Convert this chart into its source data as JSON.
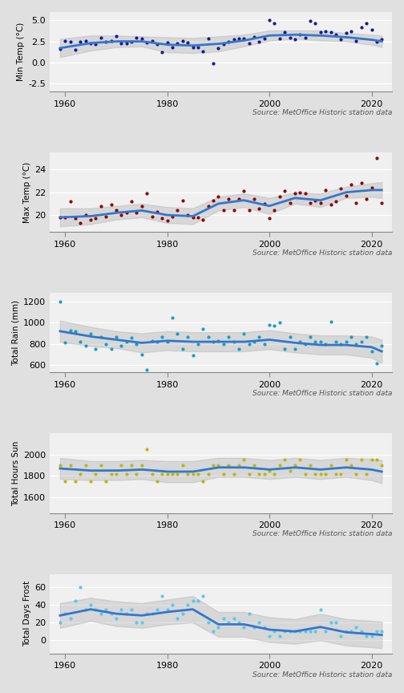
{
  "bg_color": "#e0e0e0",
  "plot_bg": "#f0f0f0",
  "source_text": "Source: MetOffice Historic station data",
  "panels": [
    {
      "ylabel": "Min Temp (°C)",
      "ylim": [
        -3.5,
        6.0
      ],
      "yticks": [
        -2.5,
        0.0,
        2.5,
        5.0
      ],
      "dot_color": "#1a1a8c",
      "years": [
        1959,
        1960,
        1961,
        1962,
        1963,
        1964,
        1965,
        1966,
        1967,
        1968,
        1969,
        1970,
        1971,
        1972,
        1973,
        1974,
        1975,
        1976,
        1977,
        1978,
        1979,
        1980,
        1981,
        1982,
        1983,
        1984,
        1985,
        1986,
        1987,
        1988,
        1989,
        1990,
        1991,
        1992,
        1993,
        1994,
        1995,
        1996,
        1997,
        1998,
        1999,
        2000,
        2001,
        2002,
        2003,
        2004,
        2005,
        2006,
        2007,
        2008,
        2009,
        2010,
        2011,
        2012,
        2013,
        2014,
        2015,
        2016,
        2017,
        2018,
        2019,
        2020,
        2021,
        2022
      ],
      "values": [
        1.6,
        2.6,
        2.5,
        1.5,
        2.5,
        2.6,
        2.3,
        2.2,
        2.9,
        2.5,
        2.6,
        3.1,
        2.3,
        2.3,
        2.5,
        2.9,
        2.8,
        2.4,
        2.6,
        2.2,
        1.2,
        2.4,
        1.8,
        2.3,
        2.6,
        2.4,
        1.8,
        1.8,
        1.3,
        2.8,
        -0.1,
        1.7,
        2.2,
        2.5,
        2.7,
        2.8,
        2.8,
        2.3,
        3.0,
        2.5,
        2.8,
        5.0,
        4.7,
        2.8,
        3.6,
        2.9,
        2.7,
        3.3,
        2.9,
        4.9,
        4.7,
        3.6,
        3.7,
        3.6,
        3.3,
        2.7,
        3.5,
        3.7,
        2.6,
        4.2,
        4.7,
        3.9,
        2.5,
        2.7
      ],
      "smooth_years": [
        1959,
        1965,
        1970,
        1975,
        1980,
        1985,
        1990,
        1995,
        2000,
        2005,
        2010,
        2015,
        2020,
        2022
      ],
      "smooth_vals": [
        1.7,
        2.3,
        2.5,
        2.5,
        2.1,
        2.0,
        2.2,
        2.6,
        3.2,
        3.3,
        3.2,
        3.0,
        2.7,
        2.5
      ],
      "ci_upper": [
        2.8,
        3.2,
        3.2,
        3.1,
        3.0,
        2.9,
        3.1,
        3.3,
        3.8,
        3.8,
        3.8,
        3.5,
        3.3,
        3.2
      ],
      "ci_lower": [
        0.6,
        1.4,
        1.8,
        1.9,
        1.2,
        1.1,
        1.3,
        1.9,
        2.6,
        2.8,
        2.6,
        2.5,
        2.1,
        1.8
      ]
    },
    {
      "ylabel": "Max Temp (°C)",
      "ylim": [
        18.5,
        25.5
      ],
      "yticks": [
        20,
        22,
        24
      ],
      "dot_color": "#8b0000",
      "years": [
        1959,
        1960,
        1961,
        1962,
        1963,
        1964,
        1965,
        1966,
        1967,
        1968,
        1969,
        1970,
        1971,
        1972,
        1973,
        1974,
        1975,
        1976,
        1977,
        1978,
        1979,
        1980,
        1981,
        1982,
        1983,
        1984,
        1985,
        1986,
        1987,
        1988,
        1989,
        1990,
        1991,
        1992,
        1993,
        1994,
        1995,
        1996,
        1997,
        1998,
        1999,
        2000,
        2001,
        2002,
        2003,
        2004,
        2005,
        2006,
        2007,
        2008,
        2009,
        2010,
        2011,
        2012,
        2013,
        2014,
        2015,
        2016,
        2017,
        2018,
        2019,
        2020,
        2021,
        2022
      ],
      "values": [
        19.8,
        19.8,
        21.2,
        19.7,
        19.3,
        20.0,
        19.6,
        19.7,
        20.8,
        19.9,
        20.9,
        20.4,
        20.0,
        20.2,
        21.2,
        20.2,
        20.8,
        21.9,
        19.9,
        20.3,
        19.7,
        19.5,
        19.9,
        20.4,
        21.3,
        20.0,
        19.8,
        19.8,
        19.6,
        20.8,
        21.3,
        21.6,
        20.4,
        21.4,
        20.4,
        21.4,
        22.1,
        20.4,
        21.4,
        20.6,
        21.0,
        19.7,
        20.4,
        21.6,
        22.1,
        21.1,
        21.9,
        22.0,
        21.9,
        21.1,
        21.3,
        21.1,
        22.2,
        20.9,
        21.2,
        22.3,
        21.7,
        22.7,
        21.1,
        22.8,
        21.4,
        22.4,
        25.0,
        21.1
      ],
      "smooth_years": [
        1959,
        1965,
        1970,
        1975,
        1980,
        1985,
        1990,
        1995,
        2000,
        2005,
        2010,
        2015,
        2020,
        2022
      ],
      "smooth_vals": [
        19.8,
        19.9,
        20.2,
        20.4,
        20.0,
        19.9,
        21.0,
        21.3,
        20.8,
        21.5,
        21.3,
        22.0,
        22.2,
        22.2
      ],
      "ci_upper": [
        20.6,
        20.6,
        20.8,
        21.0,
        20.7,
        20.6,
        21.6,
        21.9,
        21.5,
        22.0,
        21.9,
        22.5,
        22.8,
        22.9
      ],
      "ci_lower": [
        19.0,
        19.2,
        19.6,
        19.8,
        19.3,
        19.2,
        20.4,
        20.7,
        20.1,
        21.0,
        20.7,
        21.5,
        21.6,
        21.5
      ]
    },
    {
      "ylabel": "Total Rain (mm)",
      "ylim": [
        530,
        1280
      ],
      "yticks": [
        600,
        800,
        1000,
        1200
      ],
      "dot_color": "#1a9fc0",
      "years": [
        1959,
        1960,
        1961,
        1962,
        1963,
        1964,
        1965,
        1966,
        1967,
        1968,
        1969,
        1970,
        1971,
        1972,
        1973,
        1974,
        1975,
        1976,
        1977,
        1978,
        1979,
        1980,
        1981,
        1982,
        1983,
        1984,
        1985,
        1986,
        1987,
        1988,
        1989,
        1990,
        1991,
        1992,
        1993,
        1994,
        1995,
        1996,
        1997,
        1998,
        1999,
        2000,
        2001,
        2002,
        2003,
        2004,
        2005,
        2006,
        2007,
        2008,
        2009,
        2010,
        2011,
        2012,
        2013,
        2014,
        2015,
        2016,
        2017,
        2018,
        2019,
        2020,
        2021,
        2022
      ],
      "values": [
        1200,
        810,
        930,
        920,
        820,
        780,
        900,
        750,
        870,
        800,
        750,
        870,
        780,
        820,
        860,
        800,
        700,
        560,
        830,
        820,
        870,
        820,
        1050,
        900,
        750,
        870,
        690,
        800,
        940,
        870,
        820,
        830,
        800,
        870,
        820,
        750,
        900,
        800,
        820,
        870,
        800,
        980,
        970,
        1000,
        750,
        870,
        750,
        820,
        800,
        870,
        820,
        820,
        800,
        1010,
        820,
        800,
        820,
        870,
        800,
        820,
        870,
        730,
        620,
        780
      ],
      "smooth_years": [
        1959,
        1965,
        1970,
        1975,
        1980,
        1985,
        1990,
        1995,
        2000,
        2005,
        2010,
        2015,
        2020,
        2022
      ],
      "smooth_vals": [
        920,
        870,
        840,
        810,
        830,
        820,
        820,
        820,
        840,
        810,
        790,
        790,
        770,
        730
      ],
      "ci_upper": [
        1020,
        960,
        920,
        900,
        920,
        910,
        910,
        910,
        930,
        900,
        880,
        880,
        870,
        840
      ],
      "ci_lower": [
        820,
        780,
        760,
        720,
        740,
        730,
        730,
        730,
        750,
        720,
        700,
        700,
        670,
        620
      ]
    },
    {
      "ylabel": "Total Hours Sun",
      "ylim": [
        1450,
        2200
      ],
      "yticks": [
        1600,
        1800,
        2000
      ],
      "dot_color": "#b8b810",
      "years": [
        1959,
        1960,
        1961,
        1962,
        1963,
        1964,
        1965,
        1966,
        1967,
        1968,
        1969,
        1970,
        1971,
        1972,
        1973,
        1974,
        1975,
        1976,
        1977,
        1978,
        1979,
        1980,
        1981,
        1982,
        1983,
        1984,
        1985,
        1986,
        1987,
        1988,
        1989,
        1990,
        1991,
        1992,
        1993,
        1994,
        1995,
        1996,
        1997,
        1998,
        1999,
        2000,
        2001,
        2002,
        2003,
        2004,
        2005,
        2006,
        2007,
        2008,
        2009,
        2010,
        2011,
        2012,
        2013,
        2014,
        2015,
        2016,
        2017,
        2018,
        2019,
        2020,
        2021,
        2022
      ],
      "values": [
        1900,
        1750,
        1900,
        1750,
        1820,
        1900,
        1750,
        1820,
        1900,
        1750,
        1820,
        1820,
        1900,
        1820,
        1900,
        1820,
        1900,
        2050,
        1820,
        1750,
        1820,
        1820,
        1820,
        1820,
        1900,
        1820,
        1820,
        1820,
        1750,
        1820,
        1900,
        1900,
        1820,
        1900,
        1820,
        1900,
        1950,
        1820,
        1900,
        1820,
        1820,
        1850,
        1820,
        1900,
        1950,
        1850,
        1900,
        1950,
        1820,
        1900,
        1820,
        1820,
        1820,
        1900,
        1820,
        1820,
        1950,
        1900,
        1820,
        1950,
        1820,
        1950,
        1950,
        1900
      ],
      "smooth_years": [
        1959,
        1965,
        1970,
        1975,
        1980,
        1985,
        1990,
        1995,
        2000,
        2005,
        2010,
        2015,
        2020,
        2022
      ],
      "smooth_vals": [
        1870,
        1850,
        1850,
        1860,
        1840,
        1840,
        1880,
        1880,
        1860,
        1880,
        1860,
        1880,
        1860,
        1840
      ],
      "ci_upper": [
        1970,
        1940,
        1940,
        1950,
        1940,
        1940,
        1970,
        1970,
        1950,
        1970,
        1950,
        1970,
        1960,
        1950
      ],
      "ci_lower": [
        1770,
        1760,
        1760,
        1770,
        1740,
        1740,
        1790,
        1790,
        1770,
        1790,
        1770,
        1790,
        1760,
        1730
      ]
    },
    {
      "ylabel": "Total Days Frost",
      "ylim": [
        -15,
        75
      ],
      "yticks": [
        0,
        20,
        40,
        60
      ],
      "dot_color": "#5bc8e8",
      "years": [
        1959,
        1960,
        1961,
        1962,
        1963,
        1964,
        1965,
        1966,
        1967,
        1968,
        1969,
        1970,
        1971,
        1972,
        1973,
        1974,
        1975,
        1976,
        1977,
        1978,
        1979,
        1980,
        1981,
        1982,
        1983,
        1984,
        1985,
        1986,
        1987,
        1988,
        1989,
        1990,
        1991,
        1992,
        1993,
        1994,
        1995,
        1996,
        1997,
        1998,
        1999,
        2000,
        2001,
        2002,
        2003,
        2004,
        2005,
        2006,
        2007,
        2008,
        2009,
        2010,
        2011,
        2012,
        2013,
        2014,
        2015,
        2016,
        2017,
        2018,
        2019,
        2020,
        2021,
        2022
      ],
      "values": [
        20,
        30,
        25,
        45,
        60,
        35,
        40,
        35,
        30,
        35,
        30,
        25,
        35,
        30,
        35,
        20,
        20,
        30,
        30,
        35,
        50,
        35,
        40,
        25,
        30,
        40,
        45,
        45,
        50,
        20,
        10,
        15,
        25,
        20,
        25,
        20,
        15,
        30,
        15,
        20,
        15,
        5,
        10,
        5,
        10,
        10,
        10,
        10,
        10,
        10,
        10,
        35,
        10,
        20,
        20,
        5,
        10,
        10,
        15,
        10,
        5,
        5,
        10,
        10
      ],
      "smooth_years": [
        1959,
        1965,
        1970,
        1975,
        1980,
        1985,
        1990,
        1995,
        2000,
        2005,
        2010,
        2015,
        2020,
        2022
      ],
      "smooth_vals": [
        28,
        35,
        30,
        28,
        32,
        35,
        18,
        18,
        12,
        10,
        15,
        9,
        7,
        6
      ],
      "ci_upper": [
        42,
        48,
        44,
        42,
        46,
        50,
        32,
        32,
        26,
        24,
        30,
        24,
        22,
        21
      ],
      "ci_lower": [
        14,
        22,
        16,
        14,
        18,
        20,
        4,
        4,
        -2,
        -4,
        0,
        -6,
        -8,
        -9
      ]
    }
  ]
}
